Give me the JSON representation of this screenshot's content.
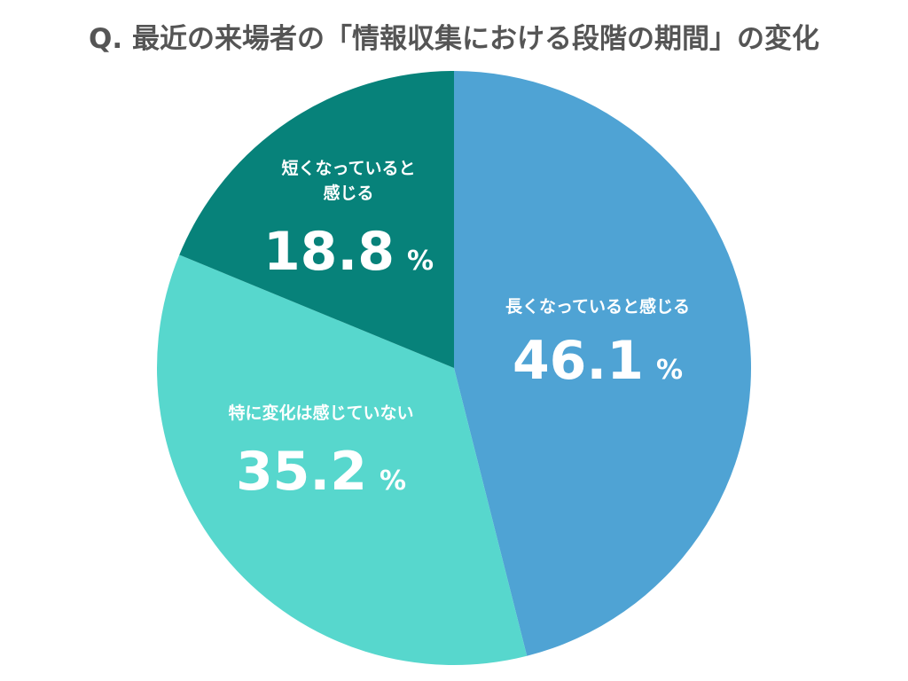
{
  "chart_data": {
    "type": "pie",
    "title": "Q. 最近の来場者の「情報収集における段階の期間」の変化",
    "start": "12 o'clock",
    "direction": "clockwise",
    "unit": "%",
    "slices": [
      {
        "label_lines": [
          "長くなっていると感じる"
        ],
        "value": 46.1,
        "value_text": "46.1",
        "color": "#4fa3d4"
      },
      {
        "label_lines": [
          "特に変化は感じていない"
        ],
        "value": 35.2,
        "value_text": "35.2",
        "color": "#57d7cd"
      },
      {
        "label_lines": [
          "短くなっていると",
          "感じる"
        ],
        "value": 18.8,
        "value_text": "18.8",
        "color": "#07827a"
      }
    ]
  }
}
